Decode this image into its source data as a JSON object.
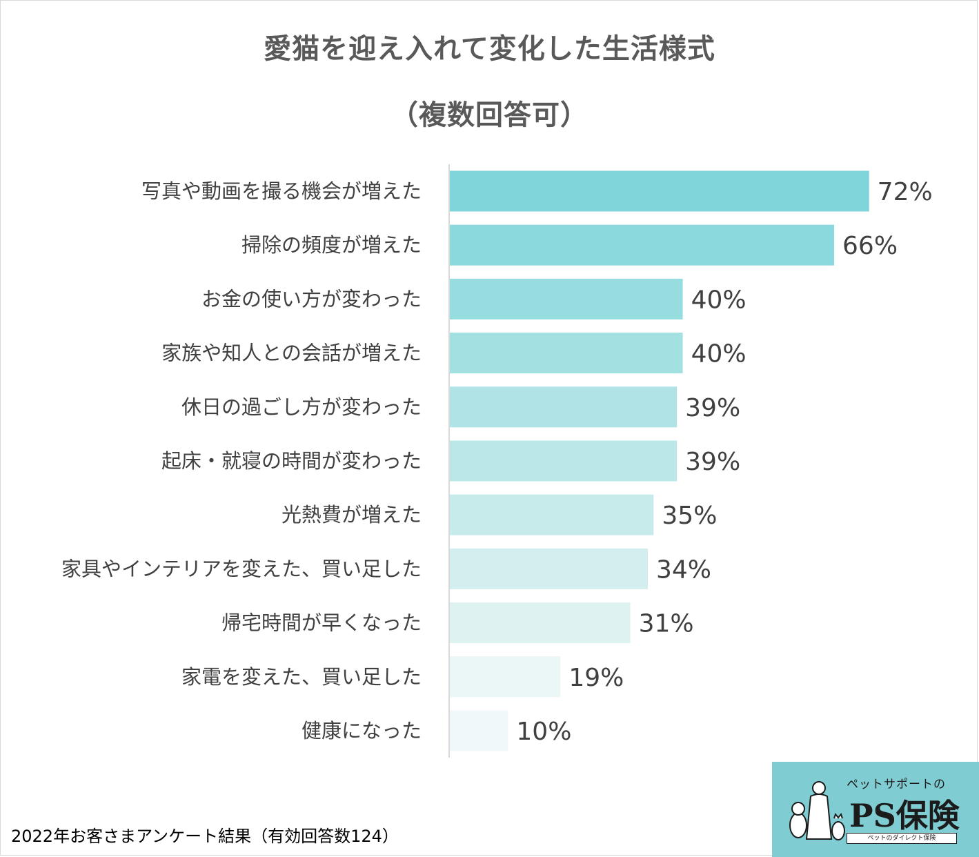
{
  "title": {
    "line1": "愛猫を迎え入れて変化した生活様式",
    "line2": "（複数回答可）"
  },
  "footnote": "2022年お客さまアンケート結果（有効回答数124）",
  "logo": {
    "tagline": "ペットサポートの",
    "name": "PS保険",
    "sub": "ペットのダイレクト保険"
  },
  "chart_data": {
    "type": "bar",
    "orientation": "horizontal",
    "title": "愛猫を迎え入れて変化した生活様式（複数回答可）",
    "categories": [
      "写真や動画を撮る機会が増えた",
      "掃除の頻度が増えた",
      "お金の使い方が変わった",
      "家族や知人との会話が増えた",
      "休日の過ごし方が変わった",
      "起床・就寝の時間が変わった",
      "光熱費が増えた",
      "家具やインテリアを変えた、買い足した",
      "帰宅時間が早くなった",
      "家電を変えた、買い足した",
      "健康になった"
    ],
    "values": [
      72,
      66,
      40,
      40,
      39,
      39,
      35,
      34,
      31,
      19,
      10
    ],
    "value_labels": [
      "72%",
      "66%",
      "40%",
      "40%",
      "39%",
      "39%",
      "35%",
      "34%",
      "31%",
      "19%",
      "10%"
    ],
    "unit": "%",
    "xlim": [
      0,
      100
    ],
    "grid": false,
    "legend": "none",
    "bar_colors": [
      "#7fd5da",
      "#8bd8dd",
      "#97dcdf",
      "#a3e0e2",
      "#afe3e5",
      "#bbe7e8",
      "#c7ebeb",
      "#d3eeee",
      "#dff2f2",
      "#ebf6f6",
      "#f0f8f9"
    ]
  }
}
